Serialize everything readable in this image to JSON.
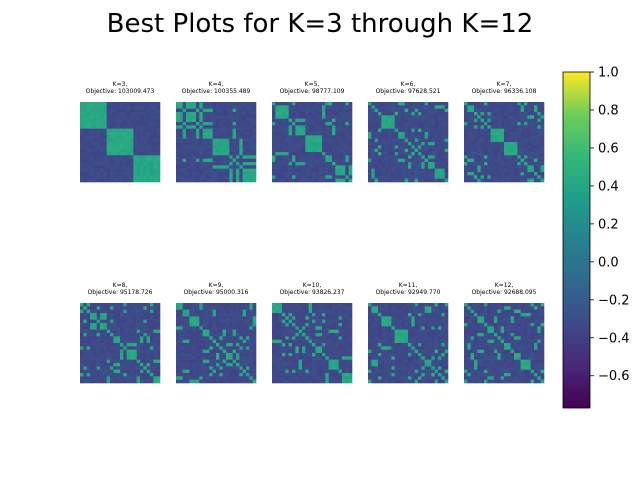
{
  "chart_data": {
    "type": "heatmap",
    "title": "Best Plots for K=3 through K=12",
    "panels": [
      {
        "k_label": "K=3,",
        "objective_label": "Objective: 103009.473",
        "k": 3,
        "objective": 103009.473
      },
      {
        "k_label": "K=4,",
        "objective_label": "Objective: 100355.489",
        "k": 4,
        "objective": 100355.489
      },
      {
        "k_label": "K=5,",
        "objective_label": "Objective: 98777.109",
        "k": 5,
        "objective": 98777.109
      },
      {
        "k_label": "K=6,",
        "objective_label": "Objective: 97628.521",
        "k": 6,
        "objective": 97628.521
      },
      {
        "k_label": "K=7,",
        "objective_label": "Objective: 96336.108",
        "k": 7,
        "objective": 96336.108
      },
      {
        "k_label": "K=8,",
        "objective_label": "Objective: 95178.726",
        "k": 8,
        "objective": 95178.726
      },
      {
        "k_label": "K=9,",
        "objective_label": "Objective: 95000.316",
        "k": 9,
        "objective": 95000.316
      },
      {
        "k_label": "K=10,",
        "objective_label": "Objective: 93826.237",
        "k": 10,
        "objective": 93826.237
      },
      {
        "k_label": "K=11,",
        "objective_label": "Objective: 92949.770",
        "k": 11,
        "objective": 92949.77
      },
      {
        "k_label": "K=12,",
        "objective_label": "Objective: 92688.095",
        "k": 12,
        "objective": 92688.095
      }
    ],
    "colorbar": {
      "colormap": "viridis",
      "range": [
        -0.77,
        1.0
      ],
      "ticks": [
        -0.6,
        -0.4,
        -0.2,
        0.0,
        0.2,
        0.4,
        0.6,
        0.8,
        1.0
      ],
      "tick_labels": [
        "−0.6",
        "−0.4",
        "−0.2",
        "0.0",
        "0.2",
        "0.4",
        "0.6",
        "0.8",
        "1.0"
      ]
    },
    "layout": {
      "rows": 2,
      "cols": 5
    },
    "grid": false
  }
}
